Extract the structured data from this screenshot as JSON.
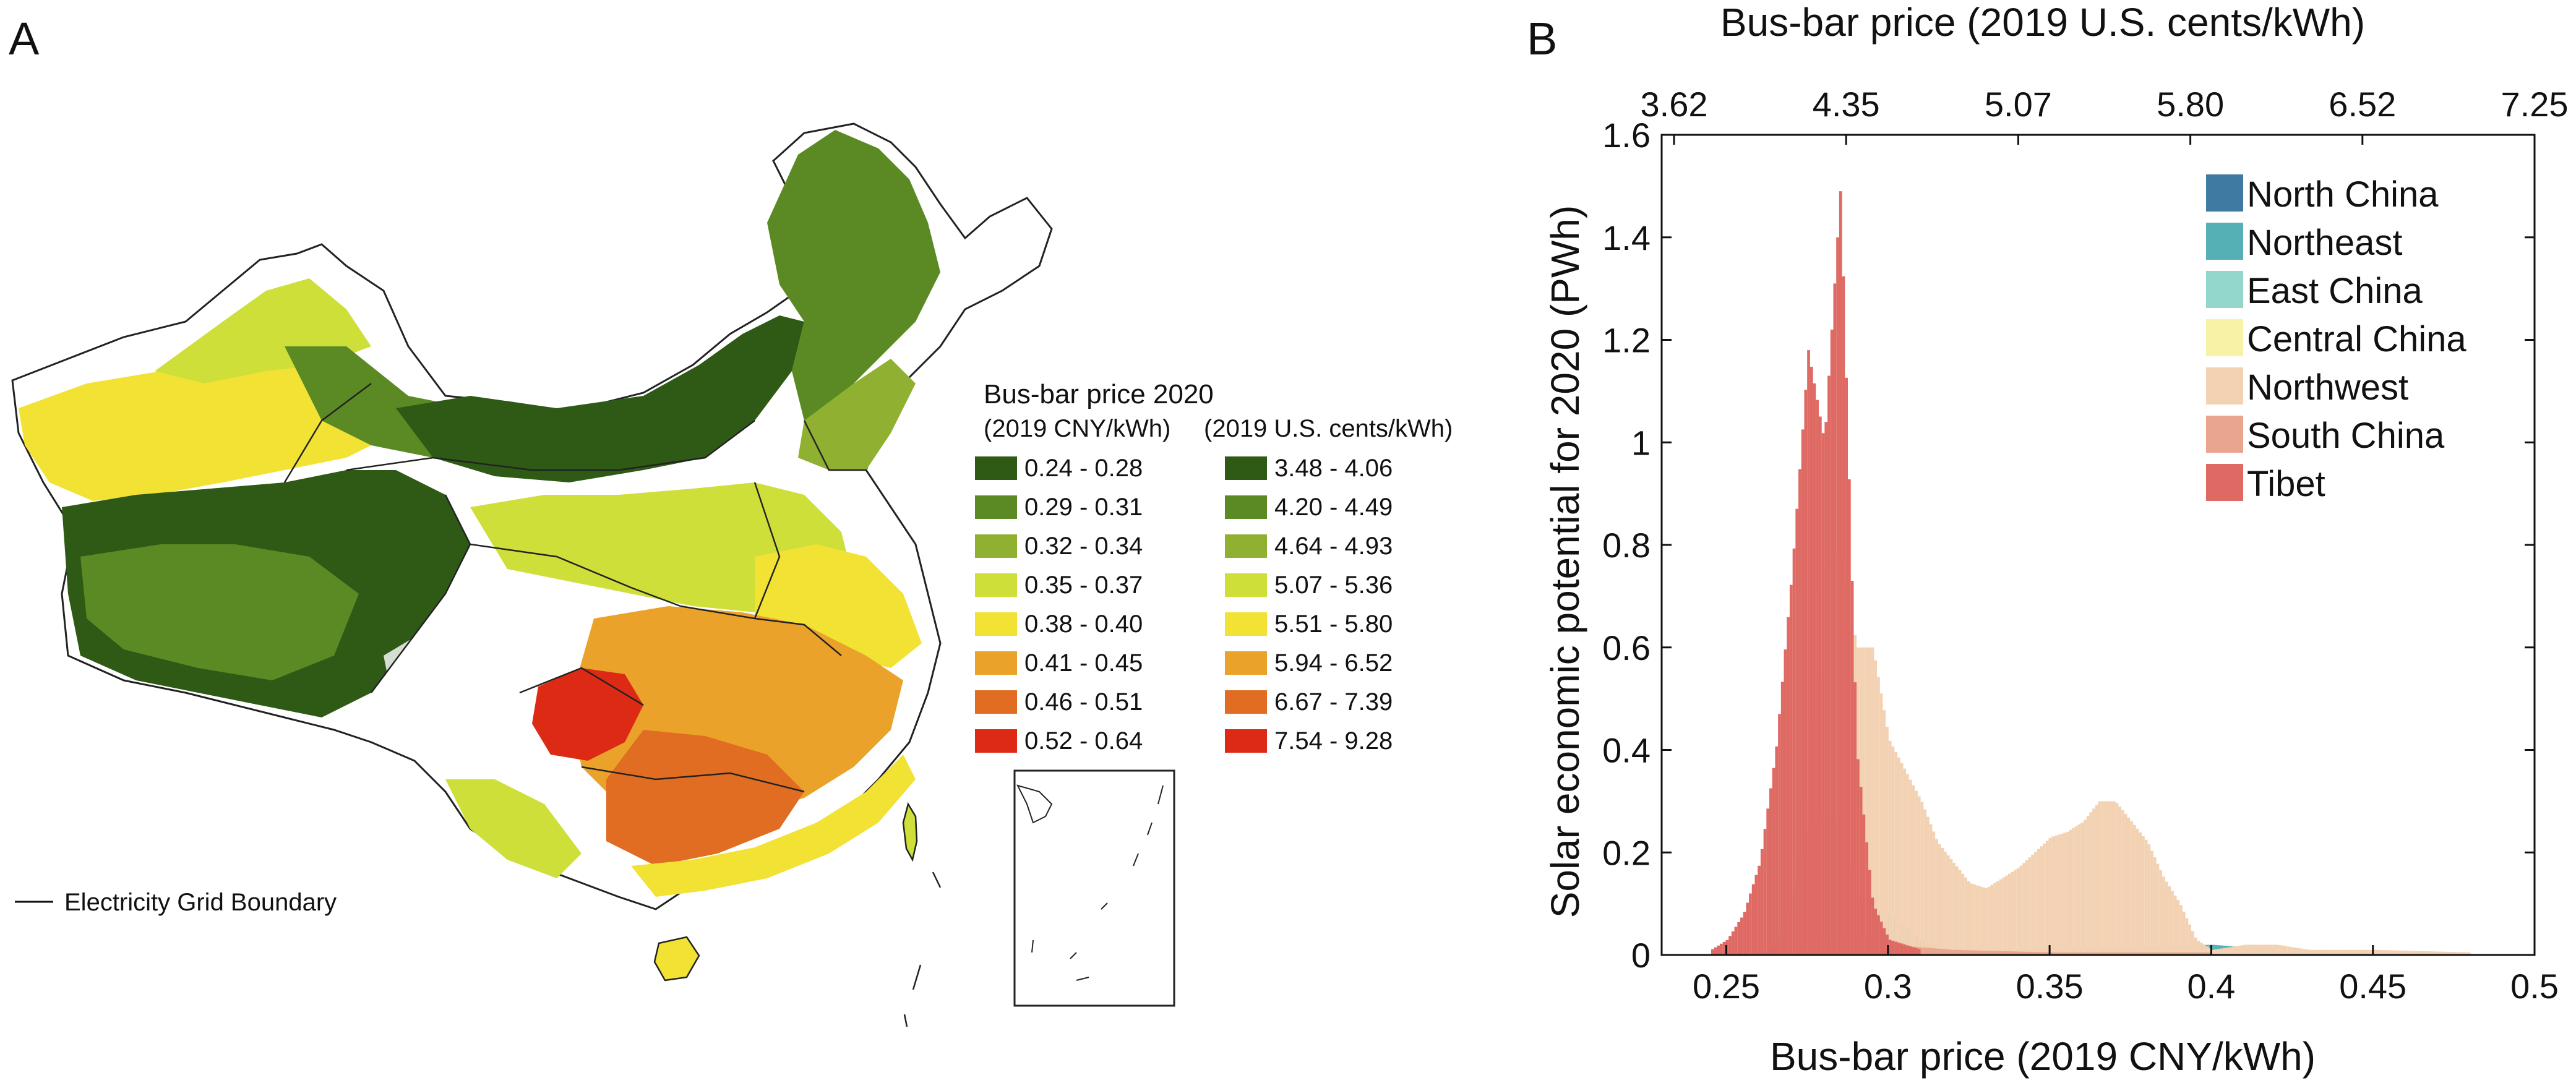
{
  "chart_data": [
    {
      "type": "map",
      "panel_label": "A",
      "legend": {
        "title": "Bus-bar price 2020",
        "col1_header": "(2019 CNY/kWh)",
        "col2_header": "(2019 U.S. cents/kWh)",
        "bins_cny": [
          "0.24 - 0.28",
          "0.29 - 0.31",
          "0.32 - 0.34",
          "0.35 - 0.37",
          "0.38 - 0.40",
          "0.41 - 0.45",
          "0.46 - 0.51",
          "0.52 - 0.64"
        ],
        "bins_usd": [
          "3.48 - 4.06",
          "4.20 - 4.49",
          "4.64 - 4.93",
          "5.07 - 5.36",
          "5.51 - 5.80",
          "5.94 - 6.52",
          "6.67 - 7.39",
          "7.54 - 9.28"
        ],
        "colors": [
          "#2f5a16",
          "#5b8a24",
          "#8fb030",
          "#cfdf3a",
          "#f2e234",
          "#eba22a",
          "#e06d22",
          "#dd2a14"
        ]
      },
      "grid_boundary_label": "Electricity Grid Boundary"
    },
    {
      "type": "bar",
      "panel_label": "B",
      "xlabel": "Bus-bar price (2019 CNY/kWh)",
      "x2label": "Bus-bar price (2019 U.S. cents/kWh)",
      "ylabel": "Solar economic potential for 2020 (PWh)",
      "xlim": [
        0.23,
        0.5
      ],
      "ylim": [
        0,
        1.6
      ],
      "xticks": [
        "0.25",
        "0.3",
        "0.35",
        "0.4",
        "0.45",
        "0.5"
      ],
      "yticks": [
        "0",
        "0.2",
        "0.4",
        "0.6",
        "0.8",
        "1",
        "1.2",
        "1.4",
        "1.6"
      ],
      "x2ticks": [
        "3.62",
        "4.35",
        "5.07",
        "5.80",
        "6.52",
        "7.25"
      ],
      "legend_position": "top-right",
      "series": [
        {
          "name": "North China",
          "color": "#3f7aa3",
          "x": [
            0.26,
            0.265,
            0.27,
            0.275,
            0.28,
            0.285,
            0.29,
            0.295,
            0.3,
            0.31,
            0.32,
            0.35,
            0.4
          ],
          "values": [
            0.0,
            0.02,
            0.1,
            0.24,
            0.28,
            0.25,
            0.12,
            0.04,
            0.02,
            0.01,
            0.01,
            0.005,
            0.0
          ]
        },
        {
          "name": "Northeast",
          "color": "#55b0b6",
          "x": [
            0.27,
            0.28,
            0.29,
            0.3,
            0.31,
            0.32,
            0.35,
            0.4,
            0.42
          ],
          "values": [
            0.01,
            0.03,
            0.1,
            0.08,
            0.03,
            0.01,
            0.01,
            0.02,
            0.01
          ]
        },
        {
          "name": "East China",
          "color": "#93d6cc",
          "x": [
            0.27,
            0.28,
            0.29,
            0.3,
            0.31,
            0.35,
            0.4
          ],
          "values": [
            0.01,
            0.02,
            0.04,
            0.02,
            0.01,
            0.005,
            0.005
          ]
        },
        {
          "name": "Central China",
          "color": "#f7f2a6",
          "x": [
            0.28,
            0.29,
            0.3,
            0.31,
            0.35,
            0.4,
            0.45
          ],
          "values": [
            0.0,
            0.01,
            0.01,
            0.01,
            0.005,
            0.01,
            0.005
          ]
        },
        {
          "name": "Northwest",
          "color": "#f3d2b3",
          "x": [
            0.265,
            0.27,
            0.275,
            0.28,
            0.285,
            0.29,
            0.295,
            0.3,
            0.305,
            0.31,
            0.315,
            0.32,
            0.325,
            0.33,
            0.335,
            0.34,
            0.345,
            0.35,
            0.355,
            0.36,
            0.365,
            0.37,
            0.375,
            0.38,
            0.385,
            0.39,
            0.395,
            0.4,
            0.41,
            0.42,
            0.43,
            0.45,
            0.48
          ],
          "values": [
            0.02,
            0.1,
            0.3,
            0.75,
            0.8,
            0.6,
            0.6,
            0.42,
            0.36,
            0.3,
            0.22,
            0.18,
            0.14,
            0.13,
            0.15,
            0.17,
            0.2,
            0.23,
            0.24,
            0.26,
            0.3,
            0.3,
            0.26,
            0.22,
            0.15,
            0.1,
            0.03,
            0.01,
            0.02,
            0.02,
            0.01,
            0.01,
            0.005
          ]
        },
        {
          "name": "South China",
          "color": "#eaa58e",
          "x": [
            0.27,
            0.28,
            0.29,
            0.3,
            0.32,
            0.35,
            0.4
          ],
          "values": [
            0.0,
            0.02,
            0.04,
            0.02,
            0.01,
            0.005,
            0.005
          ]
        },
        {
          "name": "Tibet",
          "color": "#de6a63",
          "x": [
            0.245,
            0.25,
            0.255,
            0.26,
            0.265,
            0.27,
            0.275,
            0.28,
            0.285,
            0.29,
            0.295,
            0.3,
            0.31
          ],
          "values": [
            0.01,
            0.03,
            0.08,
            0.18,
            0.4,
            0.75,
            1.18,
            1.0,
            1.5,
            0.4,
            0.1,
            0.03,
            0.01
          ]
        }
      ]
    }
  ]
}
